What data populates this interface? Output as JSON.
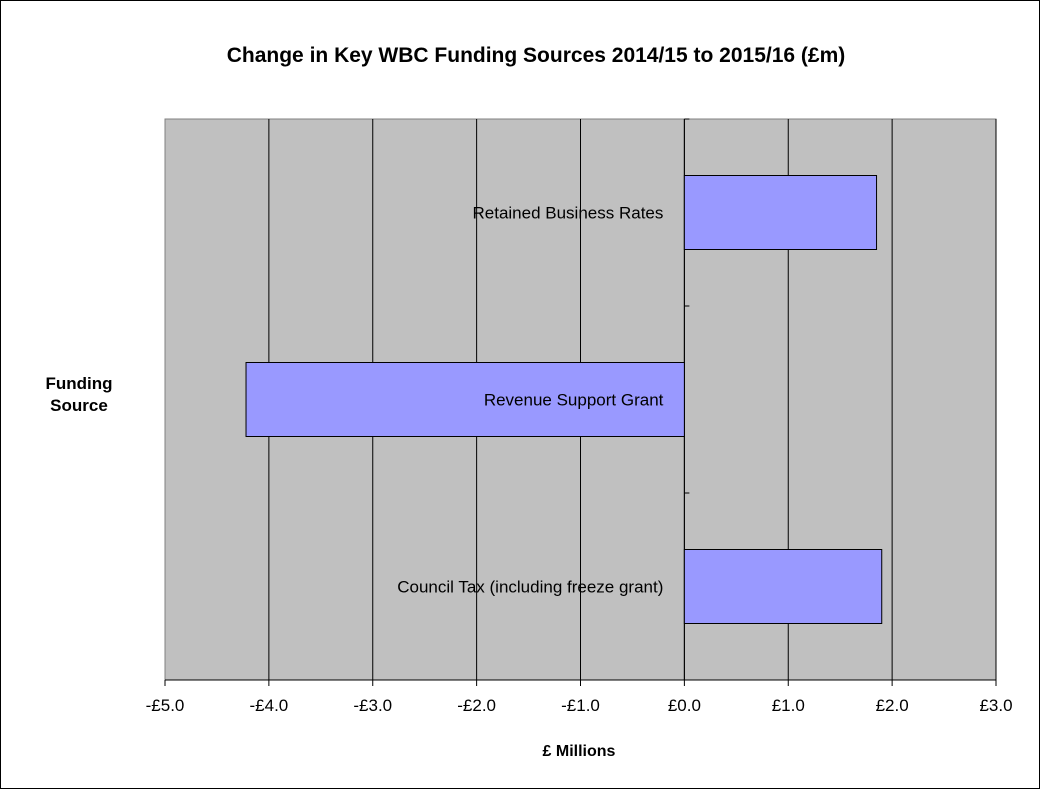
{
  "chart_data": {
    "type": "bar",
    "orientation": "horizontal",
    "title": "Change in Key WBC Funding Sources 2014/15 to 2015/16 (£m)",
    "xlabel": "£ Millions",
    "ylabel": "Funding\nSource",
    "categories": [
      "Retained Business Rates",
      "Revenue Support Grant",
      "Council Tax (including freeze grant)"
    ],
    "values": [
      1.85,
      -4.22,
      1.9
    ],
    "xlim": [
      -5,
      3
    ],
    "x_ticks": [
      -5,
      -4,
      -3,
      -2,
      -1,
      0,
      1,
      2,
      3
    ],
    "x_tick_labels": [
      "-£5.0",
      "-£4.0",
      "-£3.0",
      "-£2.0",
      "-£1.0",
      "£0.0",
      "£1.0",
      "£2.0",
      "£3.0"
    ],
    "grid": "vertical",
    "legend": "none",
    "colors": {
      "bar": "#9999ff",
      "plot_background": "#c0c0c0",
      "gridline": "#000000"
    }
  }
}
